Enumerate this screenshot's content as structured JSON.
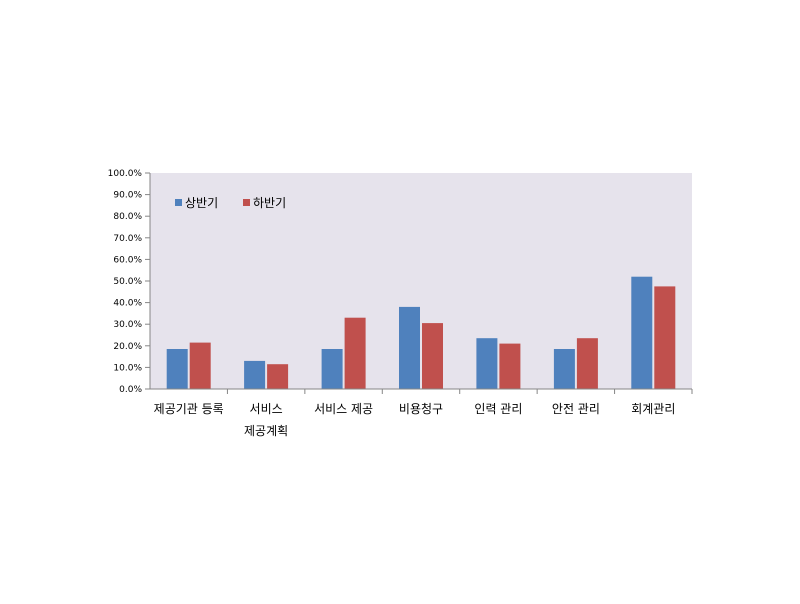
{
  "chart_data": {
    "type": "bar",
    "title": "",
    "xlabel": "",
    "ylabel": "",
    "categories": [
      [
        "제공기관 등록"
      ],
      [
        "서비스",
        "제공계획"
      ],
      [
        "서비스 제공"
      ],
      [
        "비용청구"
      ],
      [
        "인력 관리"
      ],
      [
        "안전 관리"
      ],
      [
        "회계관리"
      ]
    ],
    "series": [
      {
        "name": "상반기",
        "color": "#4F81BD",
        "values": [
          18.5,
          13.0,
          18.5,
          38.0,
          23.5,
          18.5,
          52.0
        ]
      },
      {
        "name": "하반기",
        "color": "#C0504D",
        "values": [
          21.5,
          11.5,
          33.0,
          30.5,
          21.0,
          23.5,
          47.5
        ]
      }
    ],
    "ylim": [
      0,
      100
    ],
    "yticks": [
      0,
      10,
      20,
      30,
      40,
      50,
      60,
      70,
      80,
      90,
      100
    ],
    "ytick_labels": [
      "0.0%",
      "10.0%",
      "20.0%",
      "30.0%",
      "40.0%",
      "50.0%",
      "60.0%",
      "70.0%",
      "80.0%",
      "90.0%",
      "100.0%"
    ],
    "legend_position": "top-left",
    "plot_background": "#E6E3EC",
    "grid": false
  }
}
